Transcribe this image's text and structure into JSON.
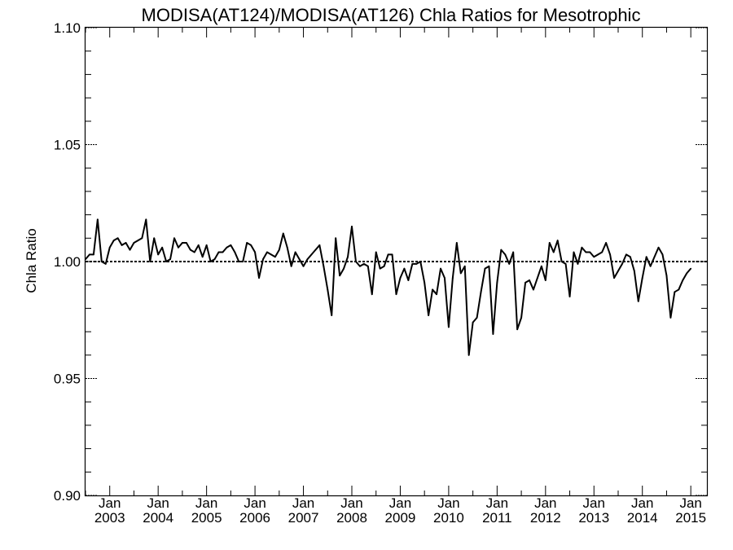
{
  "chart_data": {
    "type": "line",
    "title": "MODISA(AT124)/MODISA(AT126)  Chla Ratios for Mesotrophic",
    "xlabel": "",
    "ylabel": "Chla Ratio",
    "ylim": [
      0.9,
      1.1
    ],
    "y_ticks": [
      "0.90",
      "0.95",
      "1.00",
      "1.05",
      "1.10"
    ],
    "x_ticks": [
      {
        "month": "Jan",
        "year": "2003",
        "date": "2003-01"
      },
      {
        "month": "Jan",
        "year": "2004",
        "date": "2004-01"
      },
      {
        "month": "Jan",
        "year": "2005",
        "date": "2005-01"
      },
      {
        "month": "Jan",
        "year": "2006",
        "date": "2006-01"
      },
      {
        "month": "Jan",
        "year": "2007",
        "date": "2007-01"
      },
      {
        "month": "Jan",
        "year": "2008",
        "date": "2008-01"
      },
      {
        "month": "Jan",
        "year": "2009",
        "date": "2009-01"
      },
      {
        "month": "Jan",
        "year": "2010",
        "date": "2010-01"
      },
      {
        "month": "Jan",
        "year": "2011",
        "date": "2011-01"
      },
      {
        "month": "Jan",
        "year": "2012",
        "date": "2012-01"
      },
      {
        "month": "Jan",
        "year": "2013",
        "date": "2013-01"
      },
      {
        "month": "Jan",
        "year": "2014",
        "date": "2014-01"
      },
      {
        "month": "Jan",
        "year": "2015",
        "date": "2015-01"
      }
    ],
    "xlim": [
      "2002-07",
      "2015-05"
    ],
    "reference_line": 1.0,
    "series": [
      {
        "color": "#000000",
        "points": [
          [
            "2002-07",
            1.001
          ],
          [
            "2002-08",
            1.003
          ],
          [
            "2002-09",
            1.003
          ],
          [
            "2002-10",
            1.018
          ],
          [
            "2002-11",
            1.0
          ],
          [
            "2002-12",
            0.999
          ],
          [
            "2003-01",
            1.006
          ],
          [
            "2003-02",
            1.009
          ],
          [
            "2003-03",
            1.01
          ],
          [
            "2003-04",
            1.007
          ],
          [
            "2003-05",
            1.008
          ],
          [
            "2003-06",
            1.005
          ],
          [
            "2003-07",
            1.008
          ],
          [
            "2003-08",
            1.009
          ],
          [
            "2003-09",
            1.01
          ],
          [
            "2003-10",
            1.018
          ],
          [
            "2003-11",
            1.0
          ],
          [
            "2003-12",
            1.01
          ],
          [
            "2004-01",
            1.003
          ],
          [
            "2004-02",
            1.006
          ],
          [
            "2004-03",
            1.0
          ],
          [
            "2004-04",
            1.001
          ],
          [
            "2004-05",
            1.01
          ],
          [
            "2004-06",
            1.006
          ],
          [
            "2004-07",
            1.008
          ],
          [
            "2004-08",
            1.008
          ],
          [
            "2004-09",
            1.005
          ],
          [
            "2004-10",
            1.004
          ],
          [
            "2004-11",
            1.007
          ],
          [
            "2004-12",
            1.002
          ],
          [
            "2005-01",
            1.007
          ],
          [
            "2005-02",
            1.0
          ],
          [
            "2005-03",
            1.001
          ],
          [
            "2005-04",
            1.004
          ],
          [
            "2005-05",
            1.004
          ],
          [
            "2005-06",
            1.006
          ],
          [
            "2005-07",
            1.007
          ],
          [
            "2005-08",
            1.004
          ],
          [
            "2005-09",
            1.0
          ],
          [
            "2005-10",
            1.0
          ],
          [
            "2005-11",
            1.008
          ],
          [
            "2005-12",
            1.007
          ],
          [
            "2006-01",
            1.004
          ],
          [
            "2006-02",
            0.993
          ],
          [
            "2006-03",
            1.001
          ],
          [
            "2006-04",
            1.004
          ],
          [
            "2006-05",
            1.003
          ],
          [
            "2006-06",
            1.002
          ],
          [
            "2006-07",
            1.005
          ],
          [
            "2006-08",
            1.012
          ],
          [
            "2006-09",
            1.006
          ],
          [
            "2006-10",
            0.998
          ],
          [
            "2006-11",
            1.004
          ],
          [
            "2006-12",
            1.001
          ],
          [
            "2007-01",
            0.998
          ],
          [
            "2007-02",
            1.001
          ],
          [
            "2007-03",
            1.003
          ],
          [
            "2007-04",
            1.005
          ],
          [
            "2007-05",
            1.007
          ],
          [
            "2007-06",
            0.998
          ],
          [
            "2007-07",
            0.988
          ],
          [
            "2007-08",
            0.977
          ],
          [
            "2007-09",
            1.01
          ],
          [
            "2007-10",
            0.994
          ],
          [
            "2007-11",
            0.997
          ],
          [
            "2007-12",
            1.002
          ],
          [
            "2008-01",
            1.015
          ],
          [
            "2008-02",
            1.0
          ],
          [
            "2008-03",
            0.998
          ],
          [
            "2008-04",
            0.999
          ],
          [
            "2008-05",
            0.998
          ],
          [
            "2008-06",
            0.986
          ],
          [
            "2008-07",
            1.004
          ],
          [
            "2008-08",
            0.997
          ],
          [
            "2008-09",
            0.998
          ],
          [
            "2008-10",
            1.003
          ],
          [
            "2008-11",
            1.003
          ],
          [
            "2008-12",
            0.986
          ],
          [
            "2009-01",
            0.993
          ],
          [
            "2009-02",
            0.997
          ],
          [
            "2009-03",
            0.992
          ],
          [
            "2009-04",
            0.999
          ],
          [
            "2009-05",
            0.999
          ],
          [
            "2009-06",
            1.0
          ],
          [
            "2009-07",
            0.991
          ],
          [
            "2009-08",
            0.977
          ],
          [
            "2009-09",
            0.988
          ],
          [
            "2009-10",
            0.986
          ],
          [
            "2009-11",
            0.997
          ],
          [
            "2009-12",
            0.993
          ],
          [
            "2010-01",
            0.972
          ],
          [
            "2010-02",
            0.993
          ],
          [
            "2010-03",
            1.008
          ],
          [
            "2010-04",
            0.995
          ],
          [
            "2010-05",
            0.998
          ],
          [
            "2010-06",
            0.96
          ],
          [
            "2010-07",
            0.974
          ],
          [
            "2010-08",
            0.976
          ],
          [
            "2010-09",
            0.987
          ],
          [
            "2010-10",
            0.997
          ],
          [
            "2010-11",
            0.998
          ],
          [
            "2010-12",
            0.969
          ],
          [
            "2011-01",
            0.991
          ],
          [
            "2011-02",
            1.005
          ],
          [
            "2011-03",
            1.003
          ],
          [
            "2011-04",
            0.999
          ],
          [
            "2011-05",
            1.004
          ],
          [
            "2011-06",
            0.971
          ],
          [
            "2011-07",
            0.976
          ],
          [
            "2011-08",
            0.991
          ],
          [
            "2011-09",
            0.992
          ],
          [
            "2011-10",
            0.988
          ],
          [
            "2011-11",
            0.993
          ],
          [
            "2011-12",
            0.998
          ],
          [
            "2012-01",
            0.992
          ],
          [
            "2012-02",
            1.008
          ],
          [
            "2012-03",
            1.004
          ],
          [
            "2012-04",
            1.009
          ],
          [
            "2012-05",
            1.0
          ],
          [
            "2012-06",
            0.999
          ],
          [
            "2012-07",
            0.985
          ],
          [
            "2012-08",
            1.004
          ],
          [
            "2012-09",
            0.999
          ],
          [
            "2012-10",
            1.006
          ],
          [
            "2012-11",
            1.004
          ],
          [
            "2012-12",
            1.004
          ],
          [
            "2013-01",
            1.002
          ],
          [
            "2013-02",
            1.003
          ],
          [
            "2013-03",
            1.004
          ],
          [
            "2013-04",
            1.008
          ],
          [
            "2013-05",
            1.003
          ],
          [
            "2013-06",
            0.993
          ],
          [
            "2013-07",
            0.996
          ],
          [
            "2013-08",
            0.999
          ],
          [
            "2013-09",
            1.003
          ],
          [
            "2013-10",
            1.002
          ],
          [
            "2013-11",
            0.996
          ],
          [
            "2013-12",
            0.983
          ],
          [
            "2014-01",
            0.993
          ],
          [
            "2014-02",
            1.002
          ],
          [
            "2014-03",
            0.998
          ],
          [
            "2014-04",
            1.002
          ],
          [
            "2014-05",
            1.006
          ],
          [
            "2014-06",
            1.003
          ],
          [
            "2014-07",
            0.994
          ],
          [
            "2014-08",
            0.976
          ],
          [
            "2014-09",
            0.987
          ],
          [
            "2014-10",
            0.988
          ],
          [
            "2014-11",
            0.992
          ],
          [
            "2014-12",
            0.995
          ],
          [
            "2015-01",
            0.997
          ]
        ]
      }
    ]
  }
}
